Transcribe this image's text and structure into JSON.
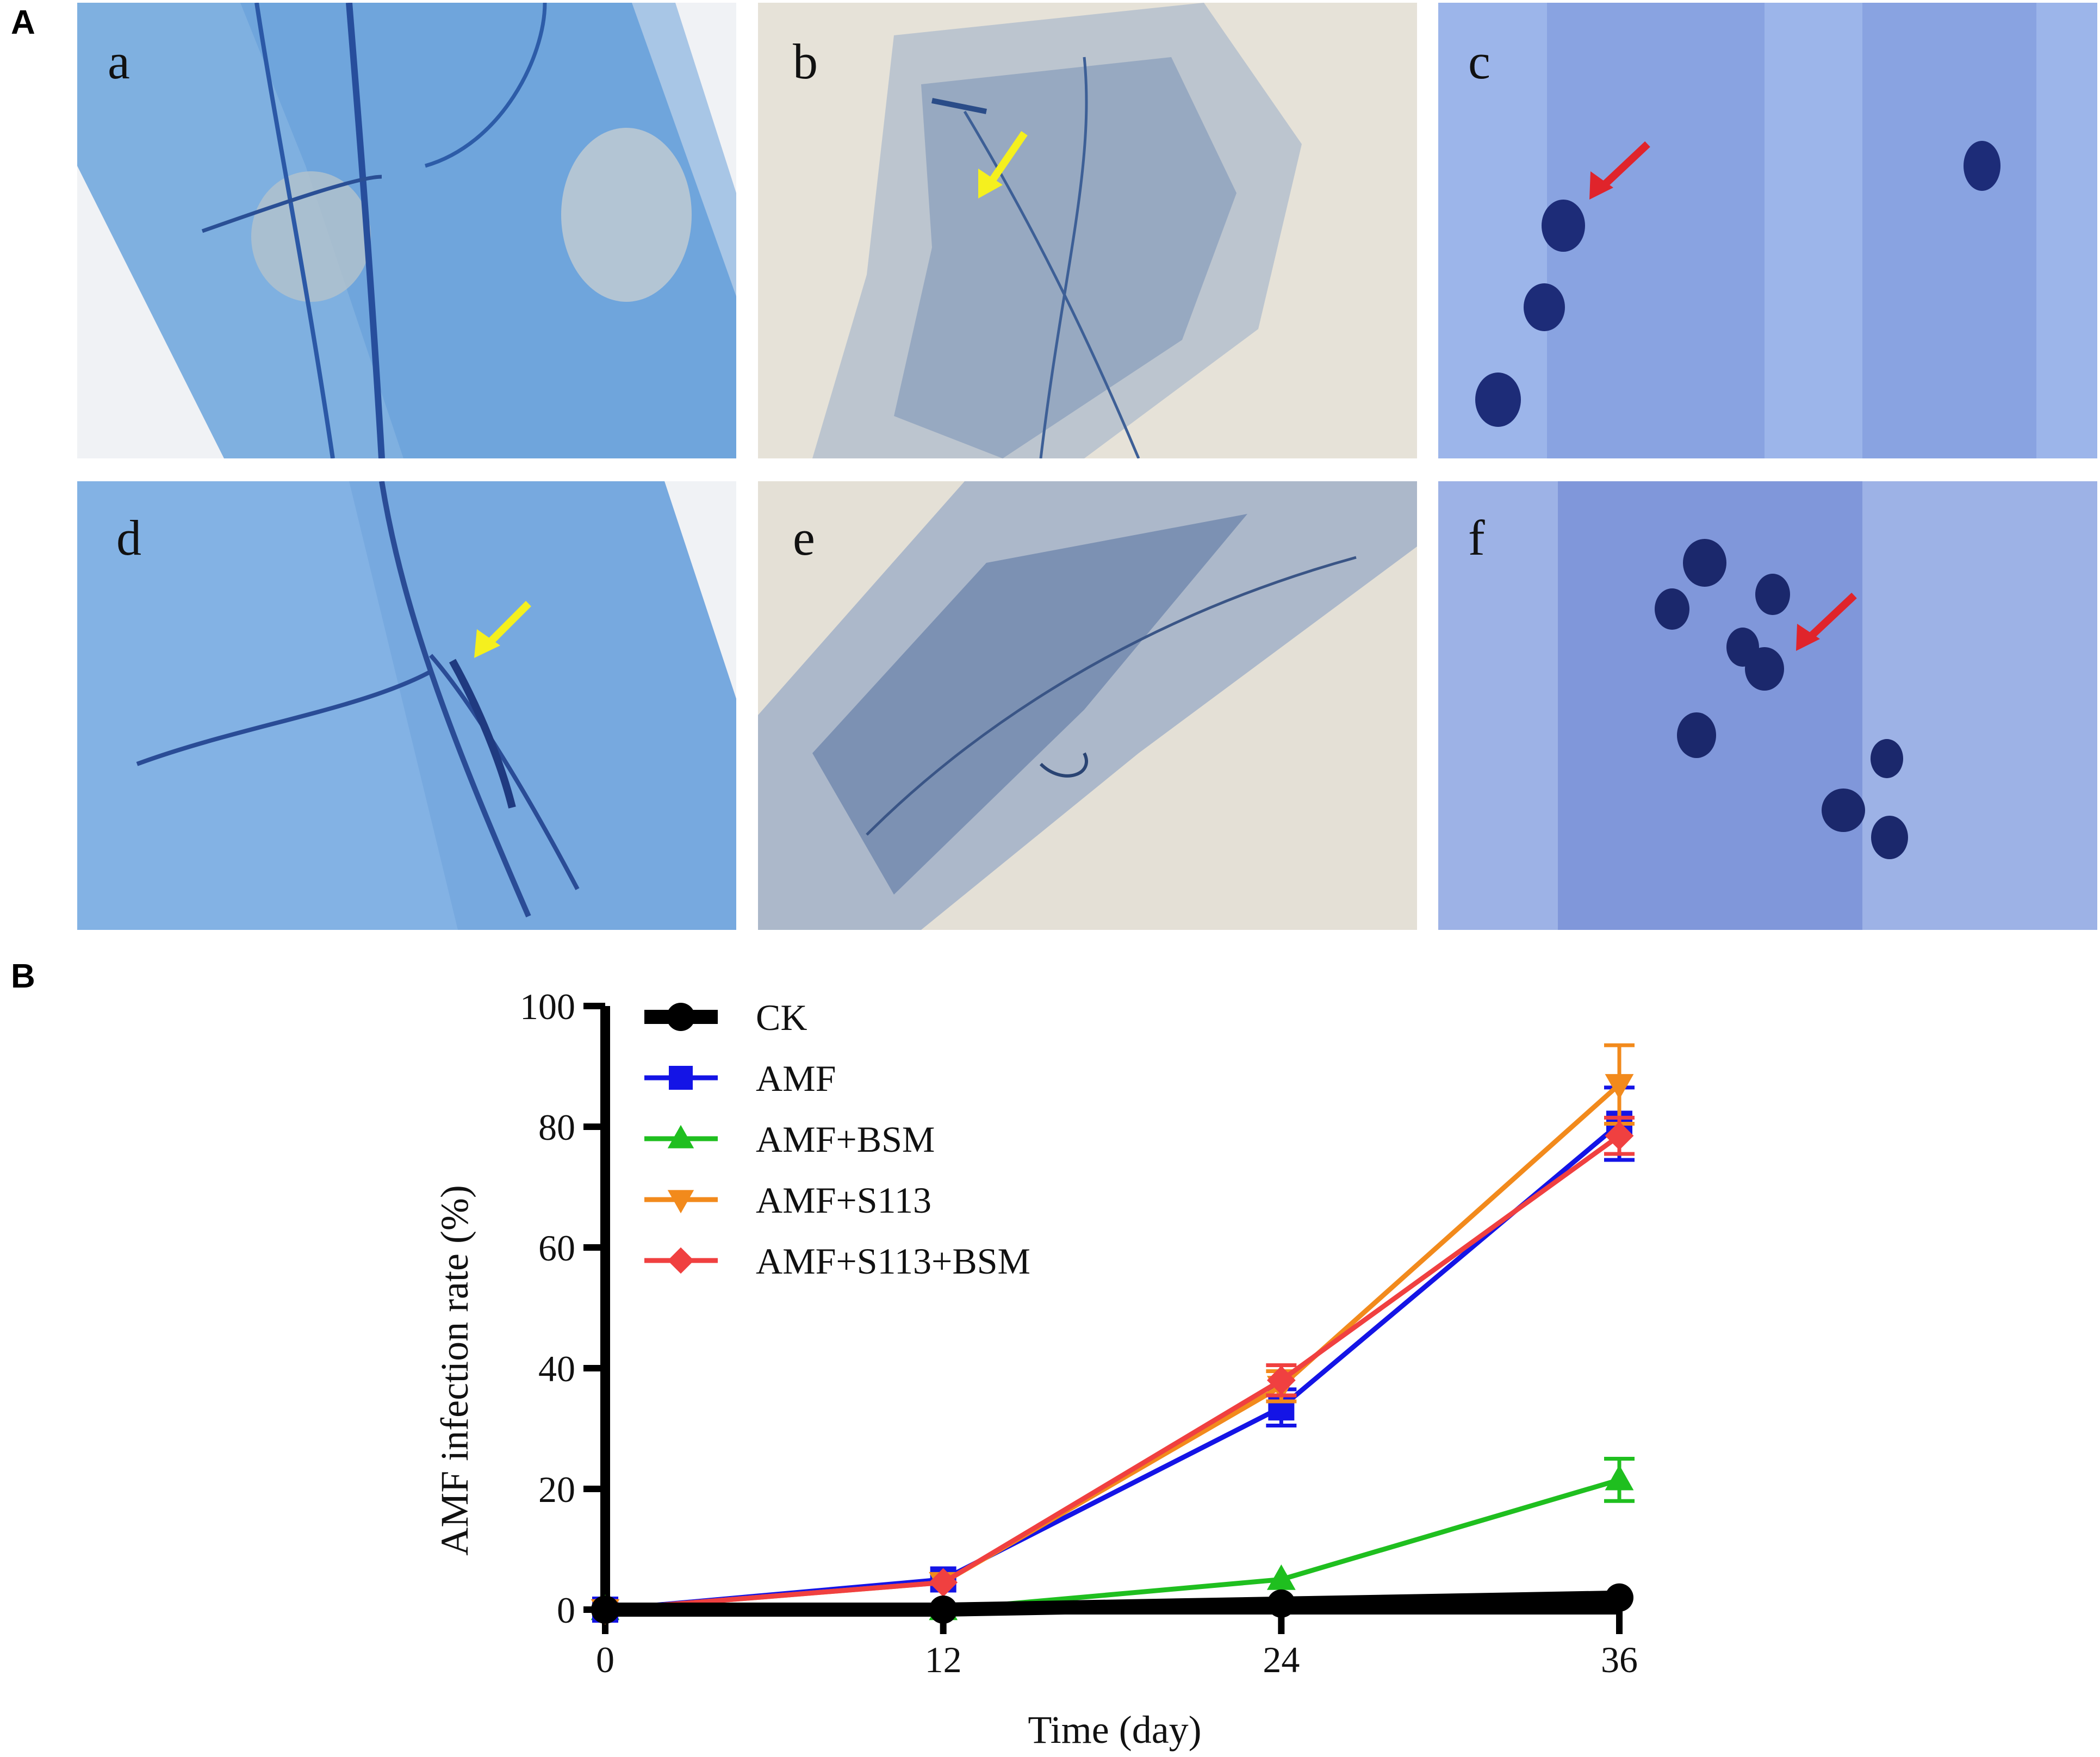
{
  "figure": {
    "panel_a_label": "A",
    "panel_b_label": "B",
    "micrographs": [
      {
        "label": "a",
        "background": "#8fb8e2",
        "has_arrow": false
      },
      {
        "label": "b",
        "background": "#e6e2d8",
        "has_arrow": true,
        "arrow_color": "#f5f01e"
      },
      {
        "label": "c",
        "background": "#9cb5ea",
        "has_arrow": true,
        "arrow_color": "#e0242b"
      },
      {
        "label": "d",
        "background": "#86b3e5",
        "has_arrow": true,
        "arrow_color": "#f5f01e"
      },
      {
        "label": "e",
        "background": "#e4e0d6",
        "has_arrow": false
      },
      {
        "label": "f",
        "background": "#9db2e6",
        "has_arrow": true,
        "arrow_color": "#e0242b"
      }
    ]
  },
  "chart_data": {
    "type": "line",
    "title": "",
    "xlabel": "Time (day)",
    "ylabel": "AMF infection rate (%)",
    "x": [
      0,
      12,
      24,
      36
    ],
    "xlim": [
      0,
      36
    ],
    "ylim": [
      0,
      100
    ],
    "xticks": [
      "0",
      "12",
      "24",
      "36"
    ],
    "yticks": [
      "0",
      "20",
      "40",
      "60",
      "80",
      "100"
    ],
    "grid": false,
    "legend_position": "top-left",
    "series": [
      {
        "name": "CK",
        "color": "#000000",
        "marker": "circle",
        "values": [
          0,
          0,
          1,
          2
        ],
        "errors": [
          0,
          0,
          0.5,
          0.6
        ]
      },
      {
        "name": "AMF",
        "color": "#1414e6",
        "marker": "square",
        "values": [
          0,
          5,
          33.5,
          80.5
        ],
        "errors": [
          0,
          0.5,
          3,
          6
        ]
      },
      {
        "name": "AMF+BSM",
        "color": "#1fbf1f",
        "marker": "triangle-up",
        "values": [
          0,
          0,
          5,
          21.5
        ],
        "errors": [
          0,
          0,
          0.5,
          3.5
        ]
      },
      {
        "name": "AMF+S113",
        "color": "#f28a1c",
        "marker": "triangle-down",
        "values": [
          0,
          4.5,
          37,
          87
        ],
        "errors": [
          0,
          0.5,
          2.5,
          6.5
        ]
      },
      {
        "name": "AMF+S113+BSM",
        "color": "#f04040",
        "marker": "diamond",
        "values": [
          0,
          4.5,
          38,
          78.5
        ],
        "errors": [
          0,
          0.5,
          2.5,
          3
        ]
      }
    ]
  }
}
